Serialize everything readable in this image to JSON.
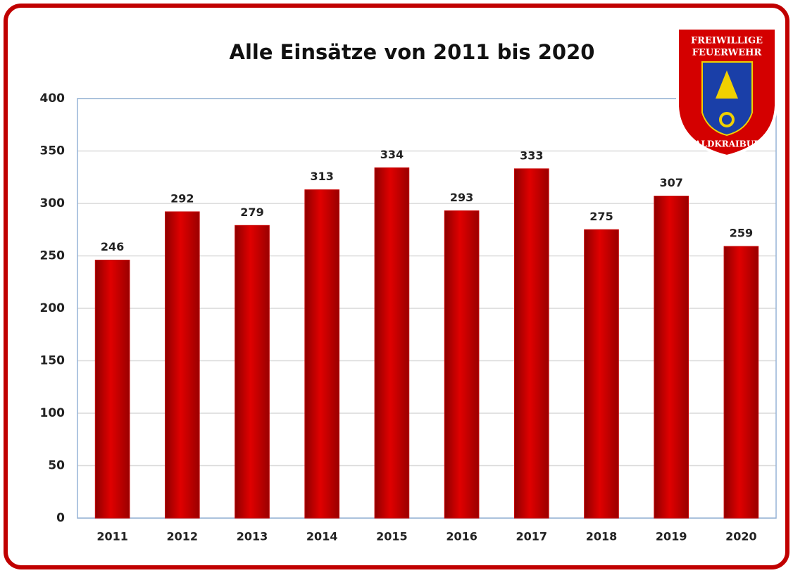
{
  "chart_data": {
    "type": "bar",
    "title": "Alle Einsätze von 2011 bis 2020",
    "categories": [
      "2011",
      "2012",
      "2013",
      "2014",
      "2015",
      "2016",
      "2017",
      "2018",
      "2019",
      "2020"
    ],
    "values": [
      246,
      292,
      279,
      313,
      334,
      293,
      333,
      275,
      307,
      259
    ],
    "color": "#c80000",
    "ylim": [
      0,
      400
    ],
    "yticks": [
      0,
      50,
      100,
      150,
      200,
      250,
      300,
      350,
      400
    ],
    "grid": true
  },
  "logo": {
    "top": "FREIWILLIGE",
    "middle": "FEUERWEHR",
    "bottom": "WALDKRAIBURG"
  }
}
